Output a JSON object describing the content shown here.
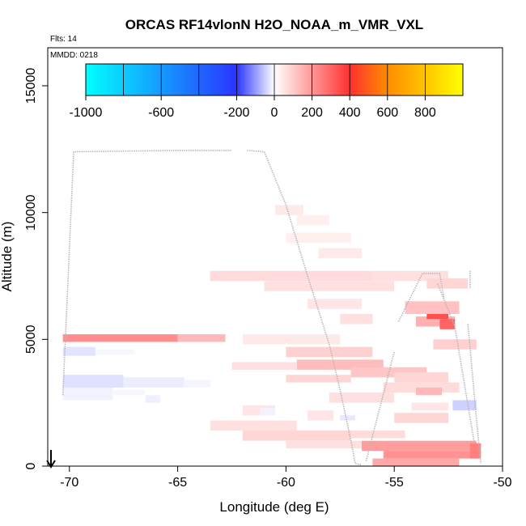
{
  "chart_data": {
    "type": "heatmap",
    "title": "ORCAS RF14vlonN H2O_NOAA_m_VMR_VXL",
    "flights_label": "Flts: 14",
    "date_label": "MMDD: 0218",
    "xlabel": "Longitude (deg E)",
    "ylabel": "Altitude (m)",
    "xlim": [
      -71,
      -50
    ],
    "ylim": [
      0,
      16500
    ],
    "x_ticks": [
      -70,
      -65,
      -60,
      -55,
      -50
    ],
    "x_tick_labels": [
      "-70",
      "-65",
      "-60",
      "-55",
      "-50"
    ],
    "y_ticks": [
      0,
      5000,
      10000,
      15000
    ],
    "y_tick_labels": [
      "0",
      "5000",
      "10000",
      "15000"
    ],
    "colorbar": {
      "range": [
        -1000,
        1000
      ],
      "ticks": [
        -1000,
        -600,
        -200,
        0,
        200,
        400,
        600,
        800
      ],
      "tick_labels": [
        "-1000",
        "-600",
        "-200",
        "0",
        "200",
        "400",
        "600",
        "800"
      ],
      "divisions": [
        -800,
        -600,
        -400,
        -200,
        0,
        200,
        400,
        600,
        800,
        1000
      ],
      "colors": {
        "min": "#00ffff",
        "low": "#2a35ff",
        "mid": "#ffffff",
        "high": "#ff3030",
        "upper": "#ff8c00",
        "max": "#ffff00"
      }
    },
    "cells": [
      {
        "x": [
          -70.3,
          -65.0
        ],
        "y": [
          4900,
          5200
        ],
        "v": 220
      },
      {
        "x": [
          -65.0,
          -62.8
        ],
        "y": [
          4900,
          5200
        ],
        "v": 140
      },
      {
        "x": [
          -70.3,
          -68.8
        ],
        "y": [
          4350,
          4700
        ],
        "v": -110
      },
      {
        "x": [
          -68.8,
          -67.0
        ],
        "y": [
          4400,
          4600
        ],
        "v": -30
      },
      {
        "x": [
          -70.3,
          -67.5
        ],
        "y": [
          3100,
          3600
        ],
        "v": -120
      },
      {
        "x": [
          -67.5,
          -64.7
        ],
        "y": [
          3100,
          3500
        ],
        "v": -70
      },
      {
        "x": [
          -64.7,
          -63.5
        ],
        "y": [
          3100,
          3400
        ],
        "v": -40
      },
      {
        "x": [
          -70.3,
          -68.0
        ],
        "y": [
          2600,
          3100
        ],
        "v": -50
      },
      {
        "x": [
          -68.0,
          -66.5
        ],
        "y": [
          2800,
          3000
        ],
        "v": -30
      },
      {
        "x": [
          -66.5,
          -65.8
        ],
        "y": [
          2500,
          2800
        ],
        "v": -60
      },
      {
        "x": [
          -60.5,
          -59.2
        ],
        "y": [
          9900,
          10300
        ],
        "v": 40
      },
      {
        "x": [
          -59.5,
          -58.0
        ],
        "y": [
          9500,
          9900
        ],
        "v": 30
      },
      {
        "x": [
          -60.0,
          -57.0
        ],
        "y": [
          8800,
          9200
        ],
        "v": 30
      },
      {
        "x": [
          -58.5,
          -56.5
        ],
        "y": [
          8200,
          8600
        ],
        "v": 40
      },
      {
        "x": [
          -63.5,
          -56.0
        ],
        "y": [
          7300,
          7700
        ],
        "v": 70
      },
      {
        "x": [
          -61.0,
          -55.0
        ],
        "y": [
          6900,
          7300
        ],
        "v": 60
      },
      {
        "x": [
          -56.0,
          -52.5
        ],
        "y": [
          7300,
          7700
        ],
        "v": 60
      },
      {
        "x": [
          -53.5,
          -51.6
        ],
        "y": [
          7000,
          7400
        ],
        "v": 80
      },
      {
        "x": [
          -59.0,
          -56.5
        ],
        "y": [
          6200,
          6600
        ],
        "v": 50
      },
      {
        "x": [
          -54.5,
          -52.0
        ],
        "y": [
          6000,
          6500
        ],
        "v": 120
      },
      {
        "x": [
          -57.5,
          -56.0
        ],
        "y": [
          5600,
          6000
        ],
        "v": 60
      },
      {
        "x": [
          -54.0,
          -52.2
        ],
        "y": [
          5500,
          5900
        ],
        "v": 150
      },
      {
        "x": [
          -53.5,
          -52.5
        ],
        "y": [
          5800,
          6000
        ],
        "v": 340
      },
      {
        "x": [
          -52.9,
          -52.2
        ],
        "y": [
          5400,
          5800
        ],
        "v": 300
      },
      {
        "x": [
          -53.2,
          -51.2
        ],
        "y": [
          4600,
          5000
        ],
        "v": 90
      },
      {
        "x": [
          -62.0,
          -57.5
        ],
        "y": [
          4800,
          5200
        ],
        "v": 40
      },
      {
        "x": [
          -60.0,
          -56.0
        ],
        "y": [
          4300,
          4700
        ],
        "v": 90
      },
      {
        "x": [
          -59.5,
          -55.5
        ],
        "y": [
          3800,
          4200
        ],
        "v": 130
      },
      {
        "x": [
          -62.5,
          -59.5
        ],
        "y": [
          3800,
          4100
        ],
        "v": 60
      },
      {
        "x": [
          -57.0,
          -53.5
        ],
        "y": [
          3500,
          3900
        ],
        "v": 110
      },
      {
        "x": [
          -60.0,
          -57.0
        ],
        "y": [
          3300,
          3600
        ],
        "v": 80
      },
      {
        "x": [
          -55.0,
          -52.5
        ],
        "y": [
          3300,
          3700
        ],
        "v": 80
      },
      {
        "x": [
          -55.5,
          -52.0
        ],
        "y": [
          2900,
          3300
        ],
        "v": 70
      },
      {
        "x": [
          -54.0,
          -52.8
        ],
        "y": [
          2800,
          3100
        ],
        "v": 140
      },
      {
        "x": [
          -58.0,
          -55.0
        ],
        "y": [
          2500,
          2900
        ],
        "v": 60
      },
      {
        "x": [
          -54.2,
          -52.5
        ],
        "y": [
          2200,
          2500
        ],
        "v": 50
      },
      {
        "x": [
          -52.3,
          -51.2
        ],
        "y": [
          2200,
          2600
        ],
        "v": -180
      },
      {
        "x": [
          -62.0,
          -60.5
        ],
        "y": [
          2000,
          2400
        ],
        "v": 50
      },
      {
        "x": [
          -61.2,
          -60.5
        ],
        "y": [
          2000,
          2300
        ],
        "v": -50
      },
      {
        "x": [
          -59.0,
          -57.8
        ],
        "y": [
          1800,
          2200
        ],
        "v": 50
      },
      {
        "x": [
          -55.0,
          -52.5
        ],
        "y": [
          1700,
          2100
        ],
        "v": 80
      },
      {
        "x": [
          -57.5,
          -56.8
        ],
        "y": [
          1800,
          2000
        ],
        "v": -90
      },
      {
        "x": [
          -63.5,
          -59.5
        ],
        "y": [
          1400,
          1800
        ],
        "v": 60
      },
      {
        "x": [
          -62.0,
          -57.0
        ],
        "y": [
          1000,
          1400
        ],
        "v": 80
      },
      {
        "x": [
          -60.0,
          -56.5
        ],
        "y": [
          700,
          1000
        ],
        "v": 60
      },
      {
        "x": [
          -57.0,
          -54.5
        ],
        "y": [
          1100,
          1400
        ],
        "v": 70
      },
      {
        "x": [
          -56.5,
          -51.2
        ],
        "y": [
          600,
          1000
        ],
        "v": 190
      },
      {
        "x": [
          -55.5,
          -51.2
        ],
        "y": [
          300,
          600
        ],
        "v": 210
      },
      {
        "x": [
          -56.0,
          -52.0
        ],
        "y": [
          0,
          300
        ],
        "v": 170
      },
      {
        "x": [
          -51.5,
          -51.0
        ],
        "y": [
          300,
          900
        ],
        "v": 250
      }
    ],
    "track": [
      [
        [
          -70.3,
          2800
        ],
        [
          -69.8,
          12400
        ],
        [
          -65.0,
          12450
        ],
        [
          -62.5,
          12450
        ]
      ],
      [
        [
          -61.8,
          12450
        ],
        [
          -61.0,
          12400
        ],
        [
          -60.0,
          10300
        ],
        [
          -59.0,
          7500
        ],
        [
          -58.0,
          4800
        ],
        [
          -57.5,
          3000
        ],
        [
          -57.0,
          1000
        ],
        [
          -56.8,
          100
        ],
        [
          -56.5,
          50
        ]
      ],
      [
        [
          -56.3,
          200
        ],
        [
          -55.0,
          4500
        ]
      ],
      [
        [
          -54.8,
          5700
        ],
        [
          -53.7,
          7600
        ],
        [
          -52.9,
          7600
        ],
        [
          -52.7,
          6600
        ]
      ],
      [
        [
          -51.5,
          7700
        ],
        [
          -51.5,
          7000
        ]
      ],
      [
        [
          -51.6,
          5600
        ],
        [
          -51.2,
          1800
        ],
        [
          -51.0,
          100
        ]
      ],
      [
        [
          -53.0,
          7200
        ],
        [
          -52.2,
          5500
        ],
        [
          -51.3,
          900
        ]
      ]
    ]
  }
}
